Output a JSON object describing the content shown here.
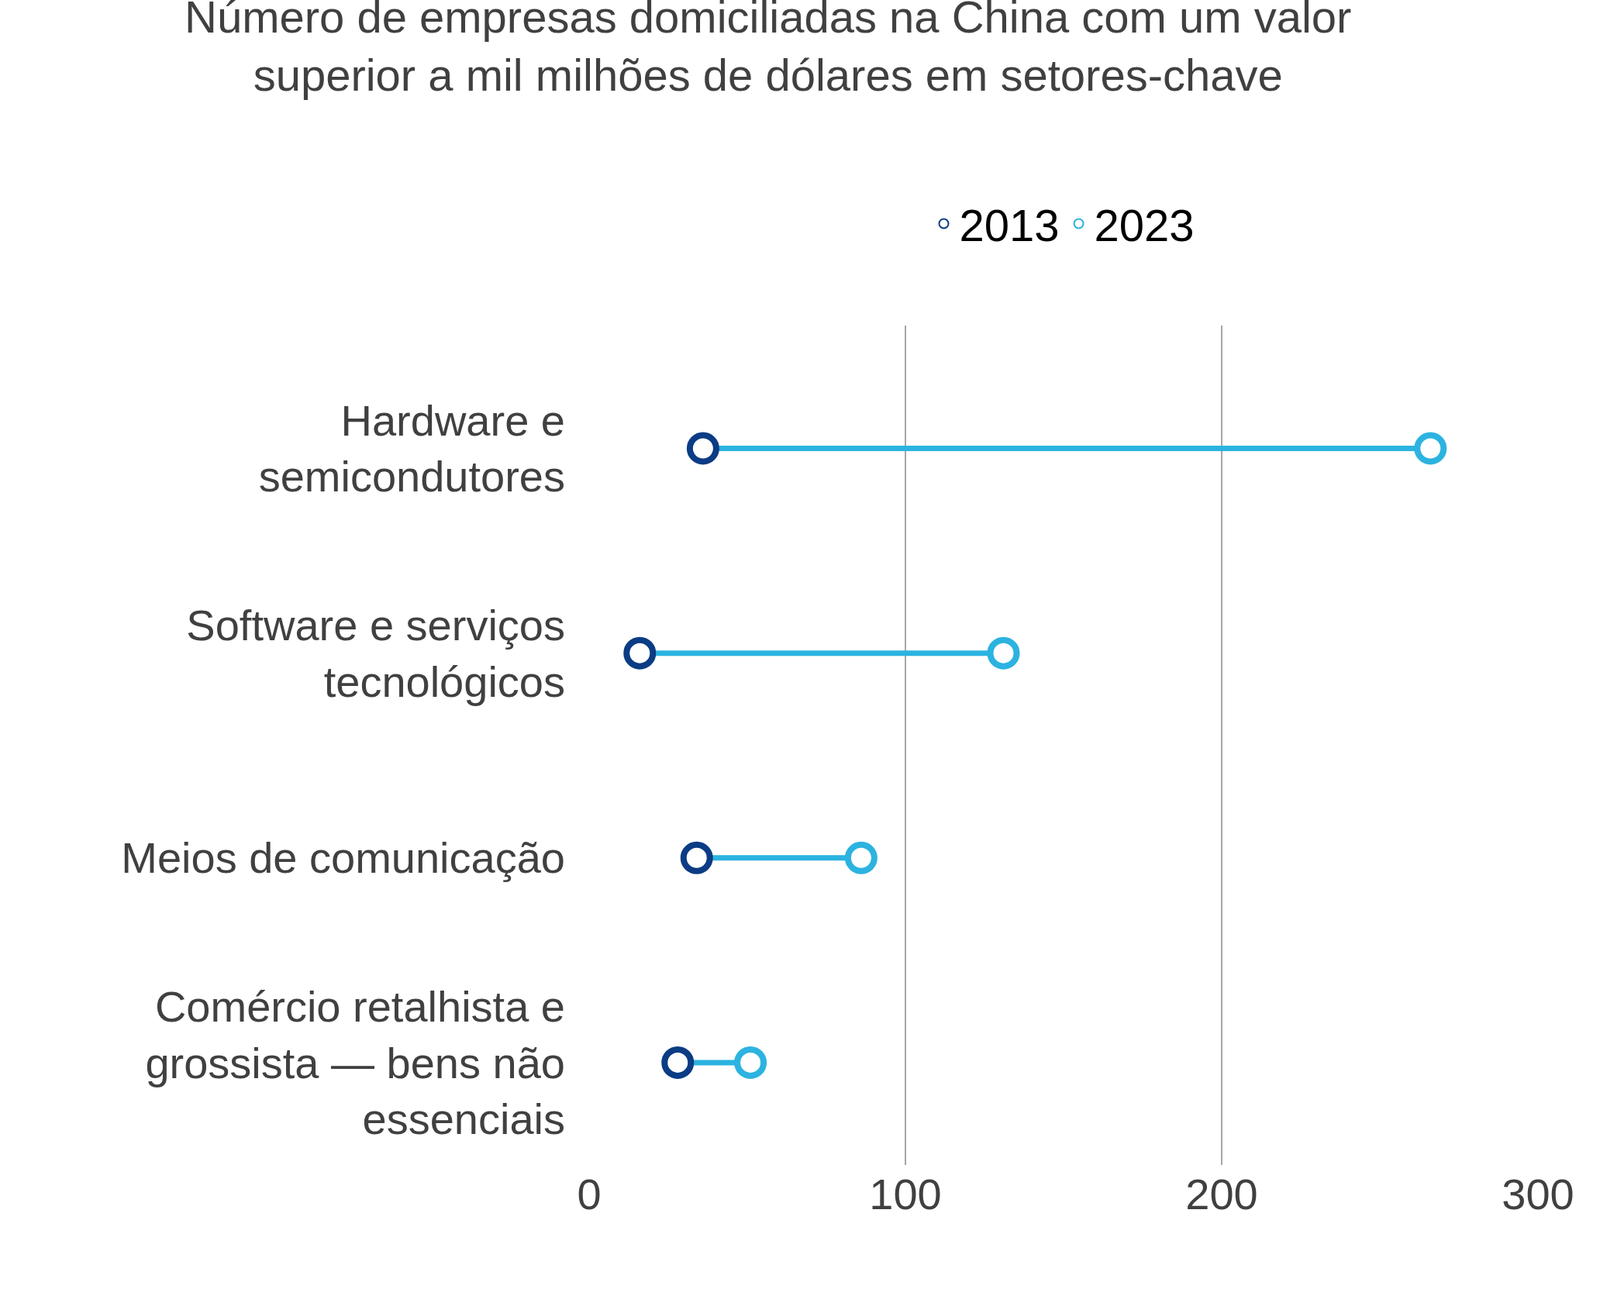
{
  "chart_data": {
    "type": "dumbbell",
    "title": "Número de empresas domiciliadas na China com um valor superior a mil milhões de dólares em setores-chave",
    "orientation": "horizontal",
    "categories": [
      "Hardware e semicondutores",
      "Software e serviços tecnológicos",
      "Meios de comunicação",
      "Comércio retalhista e grossista — bens não essenciais"
    ],
    "series": [
      {
        "name": "2013",
        "color": "#0b3c84",
        "values": [
          36,
          16,
          34,
          28
        ]
      },
      {
        "name": "2023",
        "color": "#2cb3e0",
        "values": [
          266,
          131,
          86,
          51
        ]
      }
    ],
    "xlim": [
      0,
      300
    ],
    "xticks": [
      0,
      100,
      200,
      300
    ],
    "grid": true,
    "legend": "top",
    "marker": "circle-open"
  }
}
